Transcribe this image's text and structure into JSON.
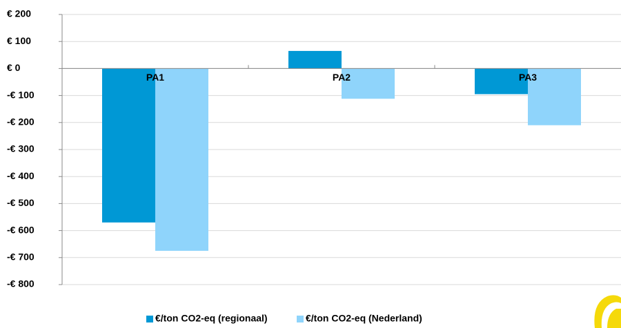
{
  "chart_data": {
    "type": "bar",
    "categories": [
      "PA1",
      "PA2",
      "PA3"
    ],
    "series": [
      {
        "name": "€/ton CO2-eq (regionaal)",
        "color": "#0098d5",
        "values": [
          -570,
          65,
          -95
        ]
      },
      {
        "name": "€/ton CO2-eq (Nederland)",
        "color": "#8fd4fb",
        "values": [
          -675,
          -112,
          -210
        ]
      }
    ],
    "ylim": [
      -800,
      200
    ],
    "yticks": [
      {
        "value": -800,
        "label": "-€ 800"
      },
      {
        "value": -700,
        "label": "-€ 700"
      },
      {
        "value": -600,
        "label": "-€ 600"
      },
      {
        "value": -500,
        "label": "-€ 500"
      },
      {
        "value": -400,
        "label": "-€ 400"
      },
      {
        "value": -300,
        "label": "-€ 300"
      },
      {
        "value": -200,
        "label": "-€ 200"
      },
      {
        "value": -100,
        "label": "-€ 100"
      },
      {
        "value": 0,
        "label": "€ 0"
      },
      {
        "value": 100,
        "label": "€ 100"
      },
      {
        "value": 200,
        "label": "€ 200"
      }
    ],
    "grid": true,
    "legend": "bottom"
  }
}
